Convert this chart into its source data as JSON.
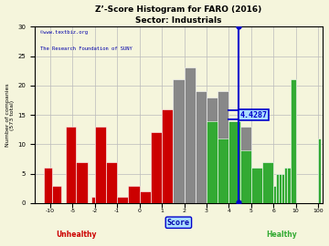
{
  "title": "Z’-Score Histogram for FARO (2016)",
  "subtitle": "Sector: Industrials",
  "xlabel": "Score",
  "ylabel": "Number of companies\n(573 total)",
  "watermark1": "©www.textbiz.org",
  "watermark2": "The Research Foundation of SUNY",
  "faro_score": 4.4287,
  "faro_label": "4.4287",
  "ylim": [
    0,
    30
  ],
  "yticks": [
    0,
    5,
    10,
    15,
    20,
    25,
    30
  ],
  "label_vals": [
    -10,
    -5,
    -2,
    -1,
    0,
    1,
    2,
    3,
    4,
    5,
    6,
    10,
    100
  ],
  "bg_color": "#f5f5dc",
  "grid_color": "#bbbbbb",
  "red_color": "#cc0000",
  "gray_color": "#888888",
  "green_color": "#33aa33",
  "score_line_color": "#0000cc",
  "bar_data": [
    [
      -11.5,
      -9.5,
      6,
      "#cc0000"
    ],
    [
      -9.5,
      -7.5,
      3,
      "#cc0000"
    ],
    [
      -6.5,
      -4.5,
      13,
      "#cc0000"
    ],
    [
      -4.5,
      -3.0,
      7,
      "#cc0000"
    ],
    [
      -2.5,
      -2.0,
      1,
      "#cc0000"
    ],
    [
      -2.0,
      -1.5,
      13,
      "#cc0000"
    ],
    [
      -1.5,
      -1.0,
      7,
      "#cc0000"
    ],
    [
      -1.0,
      -0.5,
      1,
      "#cc0000"
    ],
    [
      -0.5,
      0.0,
      3,
      "#cc0000"
    ],
    [
      0.0,
      0.5,
      2,
      "#cc0000"
    ],
    [
      0.5,
      1.0,
      12,
      "#cc0000"
    ],
    [
      1.0,
      1.5,
      16,
      "#cc0000"
    ],
    [
      1.5,
      2.0,
      21,
      "#888888"
    ],
    [
      2.0,
      2.5,
      23,
      "#888888"
    ],
    [
      2.5,
      3.0,
      19,
      "#888888"
    ],
    [
      3.0,
      3.5,
      18,
      "#888888"
    ],
    [
      3.5,
      4.0,
      19,
      "#888888"
    ],
    [
      4.0,
      4.5,
      14,
      "#888888"
    ],
    [
      4.5,
      5.0,
      13,
      "#888888"
    ],
    [
      3.0,
      3.5,
      14,
      "#33aa33"
    ],
    [
      3.5,
      4.0,
      11,
      "#33aa33"
    ],
    [
      4.0,
      4.5,
      14,
      "#33aa33"
    ],
    [
      4.5,
      5.0,
      9,
      "#33aa33"
    ],
    [
      5.0,
      5.5,
      6,
      "#33aa33"
    ],
    [
      5.5,
      6.0,
      7,
      "#33aa33"
    ],
    [
      6.0,
      6.5,
      3,
      "#33aa33"
    ],
    [
      6.5,
      7.0,
      5,
      "#33aa33"
    ],
    [
      7.0,
      7.5,
      5,
      "#33aa33"
    ],
    [
      7.5,
      8.0,
      5,
      "#33aa33"
    ],
    [
      8.0,
      8.5,
      6,
      "#33aa33"
    ],
    [
      8.5,
      9.0,
      6,
      "#33aa33"
    ],
    [
      9.0,
      10.5,
      21,
      "#33aa33"
    ],
    [
      99.0,
      101.0,
      11,
      "#33aa33"
    ]
  ]
}
